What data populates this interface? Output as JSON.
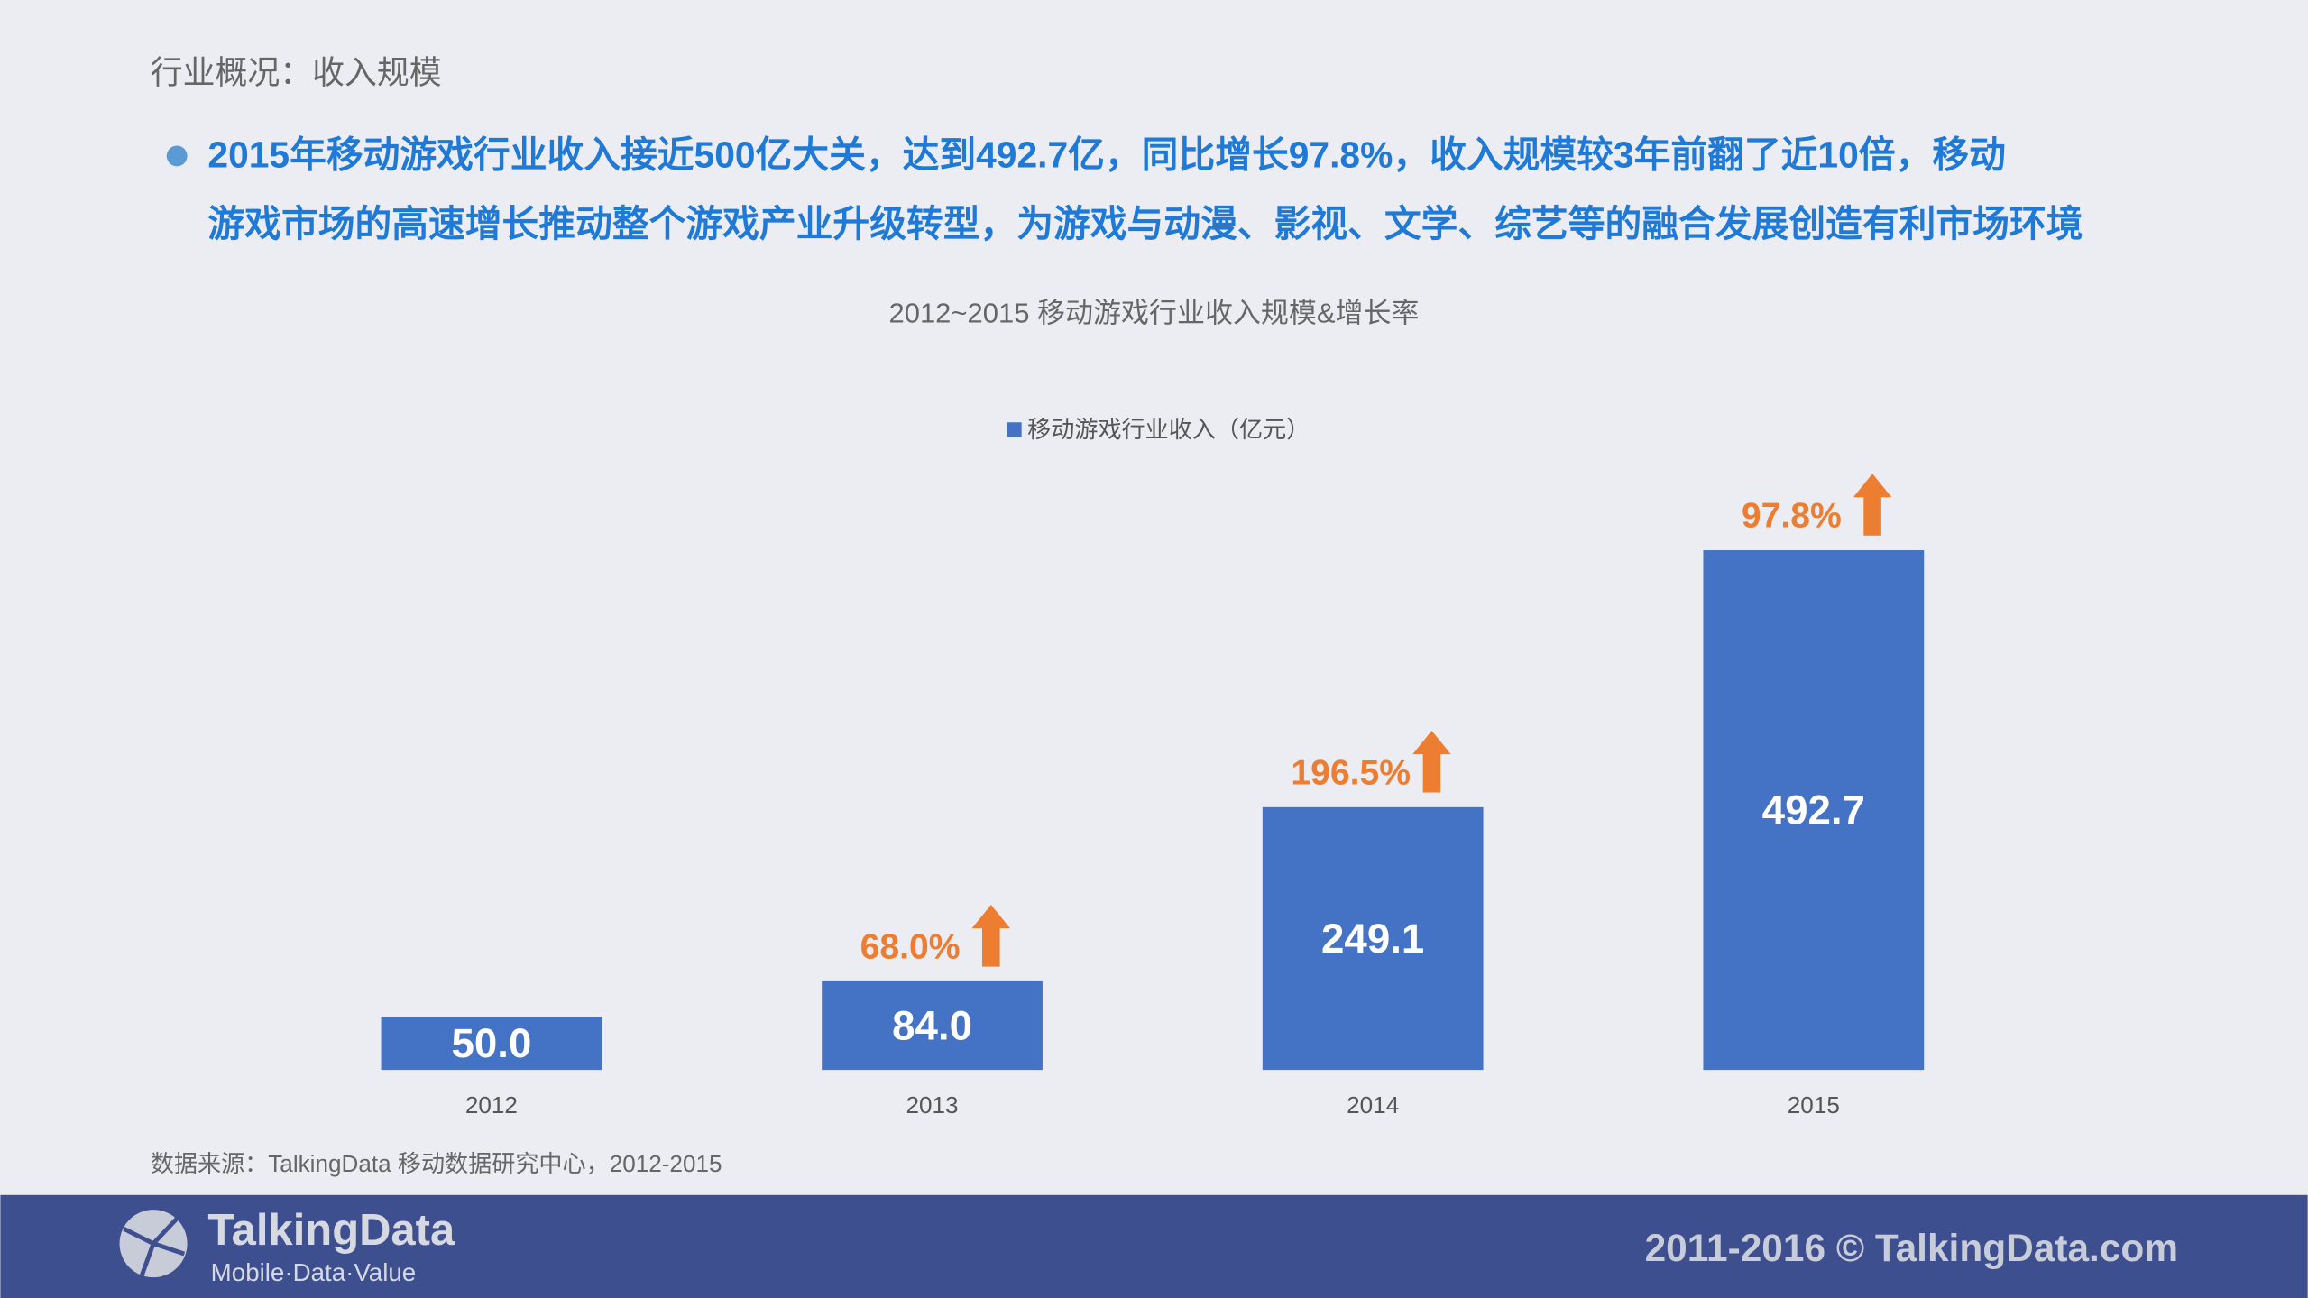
{
  "header": {
    "title": "行业概况：收入规模",
    "bullet": [
      "2015年移动游戏行业收入接近500亿大关，达到492.7亿，同比增长97.8%，收入规模较3年前翻了近10倍，移动",
      "游戏市场的高速增长推动整个游戏产业升级转型，为游戏与动漫、影视、文学、综艺等的融合发展创造有利市场环境"
    ]
  },
  "chart_data": {
    "type": "bar",
    "title": "2012~2015 移动游戏行业收入规模&增长率",
    "categories": [
      "2012",
      "2013",
      "2014",
      "2015"
    ],
    "series": [
      {
        "name": "移动游戏行业收入（亿元）",
        "color": "#4472c4",
        "values": [
          50.0,
          84.0,
          249.1,
          492.7
        ],
        "value_labels": [
          "50.0",
          "84.0",
          "249.1",
          "492.7"
        ]
      }
    ],
    "growth": {
      "color": "#ed7d31",
      "values": [
        null,
        68.0,
        196.5,
        97.8
      ],
      "value_labels": [
        null,
        "68.0%",
        "196.5%",
        "97.8%"
      ]
    },
    "ylim": [
      0,
      600
    ],
    "legend": "top"
  },
  "source": "数据来源：TalkingData  移动数据研究中心，2012-2015",
  "footer": {
    "logo": "TalkingData",
    "tagline": "Mobile·Data·Value",
    "copyright": "2011-2016 © TalkingData.com"
  }
}
